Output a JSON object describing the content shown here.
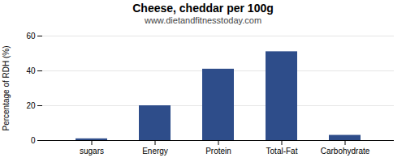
{
  "chart_data": {
    "type": "bar",
    "title": "Cheese, cheddar per 100g",
    "subtitle": "www.dietandfitnesstoday.com",
    "categories": [
      "sugars",
      "Energy",
      "Protein",
      "Total-Fat",
      "Carbohydrate"
    ],
    "values": [
      1,
      20,
      41,
      51,
      3
    ],
    "color": "#2e4d8a",
    "ylabel": "Percentage of RDH (%)",
    "ylim": [
      0,
      60
    ],
    "yticks": [
      0,
      20,
      40,
      60
    ],
    "grid": true
  }
}
